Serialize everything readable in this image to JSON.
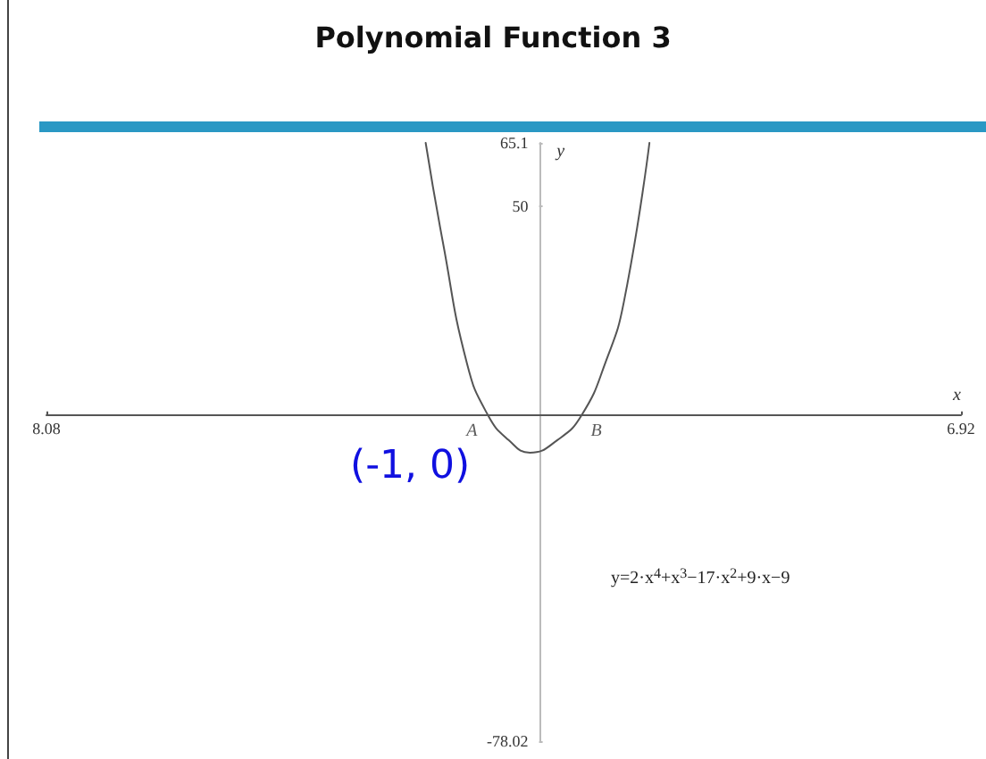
{
  "chart_data": {
    "type": "line",
    "title": "Polynomial Function 3",
    "xlabel": "x",
    "ylabel": "y",
    "x": [
      -1.86,
      -1.58,
      -1.18,
      -0.84,
      -0.5,
      -0.15,
      0.3,
      0.7,
      1.1,
      1.39,
      1.81
    ],
    "series": [
      {
        "color": "#555555",
        "values": [
          65.1,
          41.5,
          12.2,
          0,
          -6,
          -9,
          -6,
          0,
          13,
          27,
          65.1
        ]
      }
    ],
    "xlim": [
      -8.08,
      6.92
    ],
    "ylim": [
      -78.02,
      65.1
    ],
    "xticks": [
      {
        "value": -8.08,
        "label": "8.08"
      },
      6.92
    ],
    "yticks": [
      -78.02,
      50,
      65.1
    ],
    "annotations": [
      {
        "text": "A",
        "x": -0.84,
        "y": 0
      },
      {
        "text": "B",
        "x": 0.7,
        "y": 0
      },
      "(-1, 0)",
      "y=2·x$^{4}$+x$^{3}$−17·x$^{2}$+9·x−9"
    ],
    "grid": false,
    "marker": "none",
    "line_style": "solid"
  }
}
